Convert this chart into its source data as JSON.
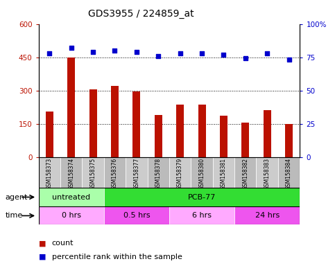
{
  "title": "GDS3955 / 224859_at",
  "samples": [
    "GSM158373",
    "GSM158374",
    "GSM158375",
    "GSM158376",
    "GSM158377",
    "GSM158378",
    "GSM158379",
    "GSM158380",
    "GSM158381",
    "GSM158382",
    "GSM158383",
    "GSM158384"
  ],
  "counts": [
    205,
    450,
    305,
    320,
    295,
    190,
    235,
    235,
    185,
    155,
    210,
    150
  ],
  "percentiles": [
    78,
    82,
    79,
    80,
    79,
    76,
    78,
    78,
    77,
    74,
    78,
    73
  ],
  "ylim_left": [
    0,
    600
  ],
  "ylim_right": [
    0,
    100
  ],
  "yticks_left": [
    0,
    150,
    300,
    450,
    600
  ],
  "yticks_right": [
    0,
    25,
    50,
    75,
    100
  ],
  "bar_color": "#bb1100",
  "dot_color": "#0000cc",
  "bg_color": "#ffffff",
  "plot_bg": "#ffffff",
  "agent_groups": [
    {
      "label": "untreated",
      "start": 0,
      "end": 3,
      "color": "#aaffaa"
    },
    {
      "label": "PCB-77",
      "start": 3,
      "end": 12,
      "color": "#33dd33"
    }
  ],
  "time_groups": [
    {
      "label": "0 hrs",
      "start": 0,
      "end": 3,
      "color": "#ffaaff"
    },
    {
      "label": "0.5 hrs",
      "start": 3,
      "end": 6,
      "color": "#ee55ee"
    },
    {
      "label": "6 hrs",
      "start": 6,
      "end": 9,
      "color": "#ffaaff"
    },
    {
      "label": "24 hrs",
      "start": 9,
      "end": 12,
      "color": "#ee55ee"
    }
  ],
  "legend_count_color": "#bb1100",
  "legend_pct_color": "#0000cc",
  "label_bg_even": "#cccccc",
  "label_bg_odd": "#bbbbbb"
}
